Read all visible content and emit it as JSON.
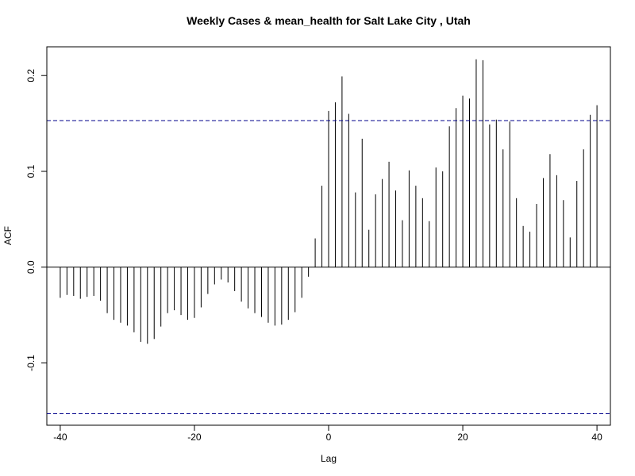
{
  "chart_data": {
    "type": "bar",
    "title": "Weekly Cases & mean_health for Salt Lake City , Utah",
    "xlabel": "Lag",
    "ylabel": "ACF",
    "xlim": [
      -42,
      42
    ],
    "ylim": [
      -0.165,
      0.23
    ],
    "x_ticks": [
      -40,
      -20,
      0,
      20,
      40
    ],
    "x_tick_labels": [
      "-40",
      "-20",
      "0",
      "20",
      "40"
    ],
    "y_ticks": [
      -0.1,
      0.0,
      0.1,
      0.2
    ],
    "y_tick_labels": [
      "-0.1",
      "0.0",
      "0.1",
      "0.2"
    ],
    "confidence_bounds": [
      0.153,
      -0.153
    ],
    "grid": false,
    "lags": [
      -40,
      -39,
      -38,
      -37,
      -36,
      -35,
      -34,
      -33,
      -32,
      -31,
      -30,
      -29,
      -28,
      -27,
      -26,
      -25,
      -24,
      -23,
      -22,
      -21,
      -20,
      -19,
      -18,
      -17,
      -16,
      -15,
      -14,
      -13,
      -12,
      -11,
      -10,
      -9,
      -8,
      -7,
      -6,
      -5,
      -4,
      -3,
      -2,
      -1,
      0,
      1,
      2,
      3,
      4,
      5,
      6,
      7,
      8,
      9,
      10,
      11,
      12,
      13,
      14,
      15,
      16,
      17,
      18,
      19,
      20,
      21,
      22,
      23,
      24,
      25,
      26,
      27,
      28,
      29,
      30,
      31,
      32,
      33,
      34,
      35,
      36,
      37,
      38,
      39,
      40
    ],
    "values": [
      -0.032,
      -0.029,
      -0.03,
      -0.033,
      -0.031,
      -0.03,
      -0.035,
      -0.048,
      -0.055,
      -0.058,
      -0.061,
      -0.068,
      -0.078,
      -0.08,
      -0.075,
      -0.062,
      -0.048,
      -0.045,
      -0.05,
      -0.055,
      -0.053,
      -0.042,
      -0.028,
      -0.018,
      -0.013,
      -0.016,
      -0.025,
      -0.036,
      -0.043,
      -0.048,
      -0.052,
      -0.058,
      -0.061,
      -0.06,
      -0.055,
      -0.047,
      -0.032,
      -0.01,
      0.03,
      0.085,
      0.163,
      0.172,
      0.199,
      0.16,
      0.078,
      0.134,
      0.039,
      0.076,
      0.092,
      0.11,
      0.08,
      0.049,
      0.101,
      0.085,
      0.072,
      0.048,
      0.104,
      0.1,
      0.147,
      0.166,
      0.179,
      0.176,
      0.217,
      0.216,
      0.149,
      0.154,
      0.123,
      0.152,
      0.072,
      0.043,
      0.037,
      0.066,
      0.093,
      0.118,
      0.096,
      0.07,
      0.031,
      0.09,
      0.123,
      0.159,
      0.169
    ],
    "colors": {
      "bars": "#000000",
      "bounds": "#00008b",
      "axis": "#000000"
    }
  }
}
